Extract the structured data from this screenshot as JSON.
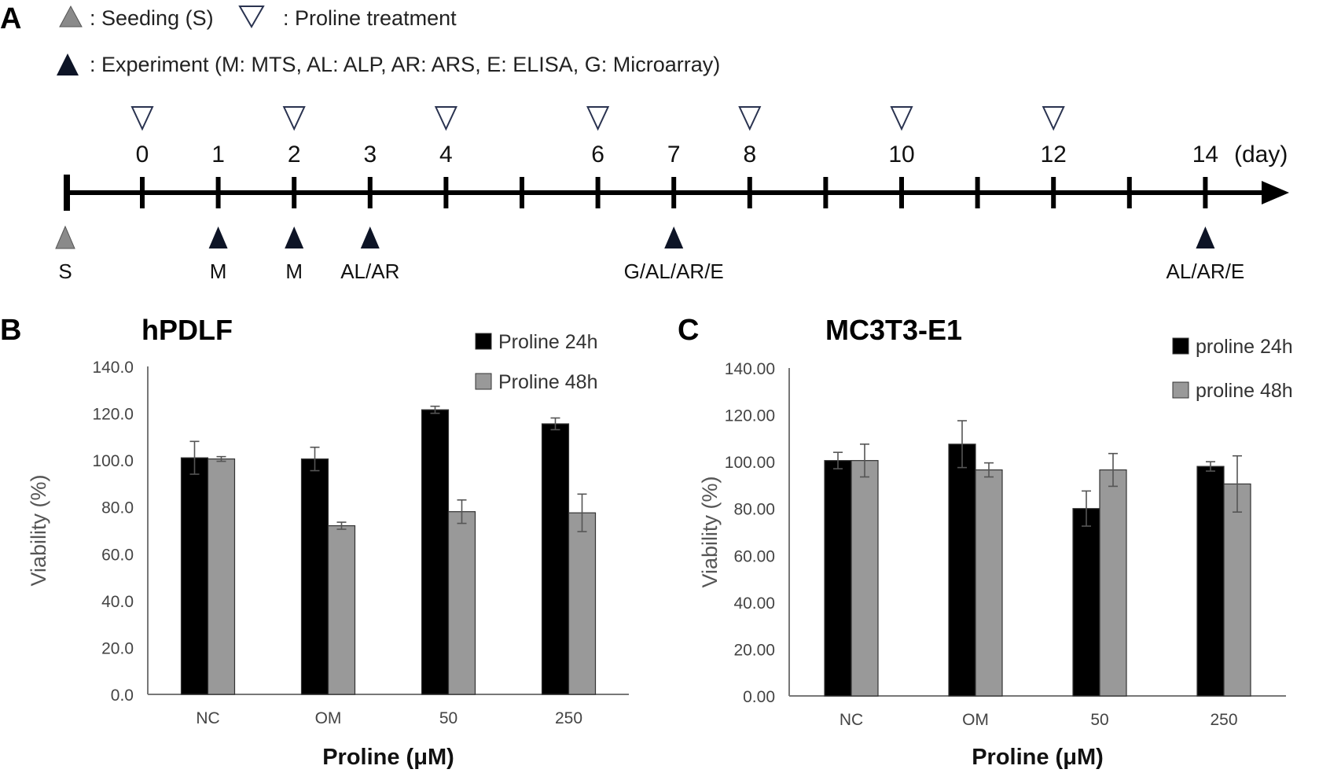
{
  "panel_a": {
    "letter": "A",
    "legend": {
      "seeding_label": ": Seeding (S)",
      "treatment_label": ": Proline treatment",
      "experiment_label": ": Experiment (M: MTS, AL: ALP, AR: ARS, E: ELISA, G: Microarray)"
    },
    "timeline": {
      "unit": "(day)",
      "days": [
        0,
        1,
        2,
        3,
        4,
        5,
        6,
        7,
        8,
        9,
        10,
        11,
        12,
        13,
        14
      ],
      "day_labels": [
        {
          "day": 0,
          "label": "0"
        },
        {
          "day": 1,
          "label": "1"
        },
        {
          "day": 2,
          "label": "2"
        },
        {
          "day": 3,
          "label": "3"
        },
        {
          "day": 4,
          "label": "4"
        },
        {
          "day": 6,
          "label": "6"
        },
        {
          "day": 7,
          "label": "7"
        },
        {
          "day": 8,
          "label": "8"
        },
        {
          "day": 10,
          "label": "10"
        },
        {
          "day": 12,
          "label": "12"
        },
        {
          "day": 14,
          "label": "14"
        }
      ],
      "treatment_days": [
        0,
        2,
        4,
        6,
        8,
        10,
        12
      ],
      "seeding": {
        "day": -1,
        "label": "S"
      },
      "experiments": [
        {
          "day": 1,
          "label": "M"
        },
        {
          "day": 2,
          "label": "M"
        },
        {
          "day": 3,
          "label": "AL/AR"
        },
        {
          "day": 7,
          "label": "G/AL/AR/E"
        },
        {
          "day": 14,
          "label": "AL/AR/E"
        }
      ],
      "colors": {
        "seeding": "#8a8a8a",
        "experiment": "#0d1426",
        "treatment_stroke": "#2a3350"
      }
    }
  },
  "chart_data": [
    {
      "panel": "B",
      "type": "bar",
      "title": "hPDLF",
      "xlabel": "Proline (μM)",
      "ylabel": "Viability (%)",
      "categories": [
        "NC",
        "OM",
        "50",
        "250"
      ],
      "ylim": [
        0,
        140
      ],
      "yticks": [
        "0.0",
        "20.0",
        "40.0",
        "60.0",
        "80.0",
        "100.0",
        "120.0",
        "140.0"
      ],
      "grid": false,
      "legend_position": "top-right",
      "series": [
        {
          "name": "Proline 24h",
          "color": "#000000",
          "values": [
            101,
            100.5,
            121.5,
            115.5
          ],
          "errors": [
            7,
            5,
            1.5,
            2.5
          ]
        },
        {
          "name": "Proline 48h",
          "color": "#999999",
          "values": [
            100.5,
            72,
            78,
            77.5
          ],
          "errors": [
            1,
            1.5,
            5,
            8
          ]
        }
      ]
    },
    {
      "panel": "C",
      "type": "bar",
      "title": "MC3T3-E1",
      "xlabel": "Proline (μM)",
      "ylabel": "Viability (%)",
      "categories": [
        "NC",
        "OM",
        "50",
        "250"
      ],
      "ylim": [
        0,
        140
      ],
      "yticks": [
        "0.00",
        "20.00",
        "40.00",
        "60.00",
        "80.00",
        "100.00",
        "120.00",
        "140.00"
      ],
      "grid": false,
      "legend_position": "top-right",
      "series": [
        {
          "name": "proline 24h",
          "color": "#000000",
          "values": [
            100.5,
            107.5,
            80,
            98
          ],
          "errors": [
            3.5,
            10,
            7.5,
            2
          ]
        },
        {
          "name": "proline 48h",
          "color": "#999999",
          "values": [
            100.5,
            96.5,
            96.5,
            90.5
          ],
          "errors": [
            7,
            3,
            7,
            12
          ]
        }
      ]
    }
  ]
}
